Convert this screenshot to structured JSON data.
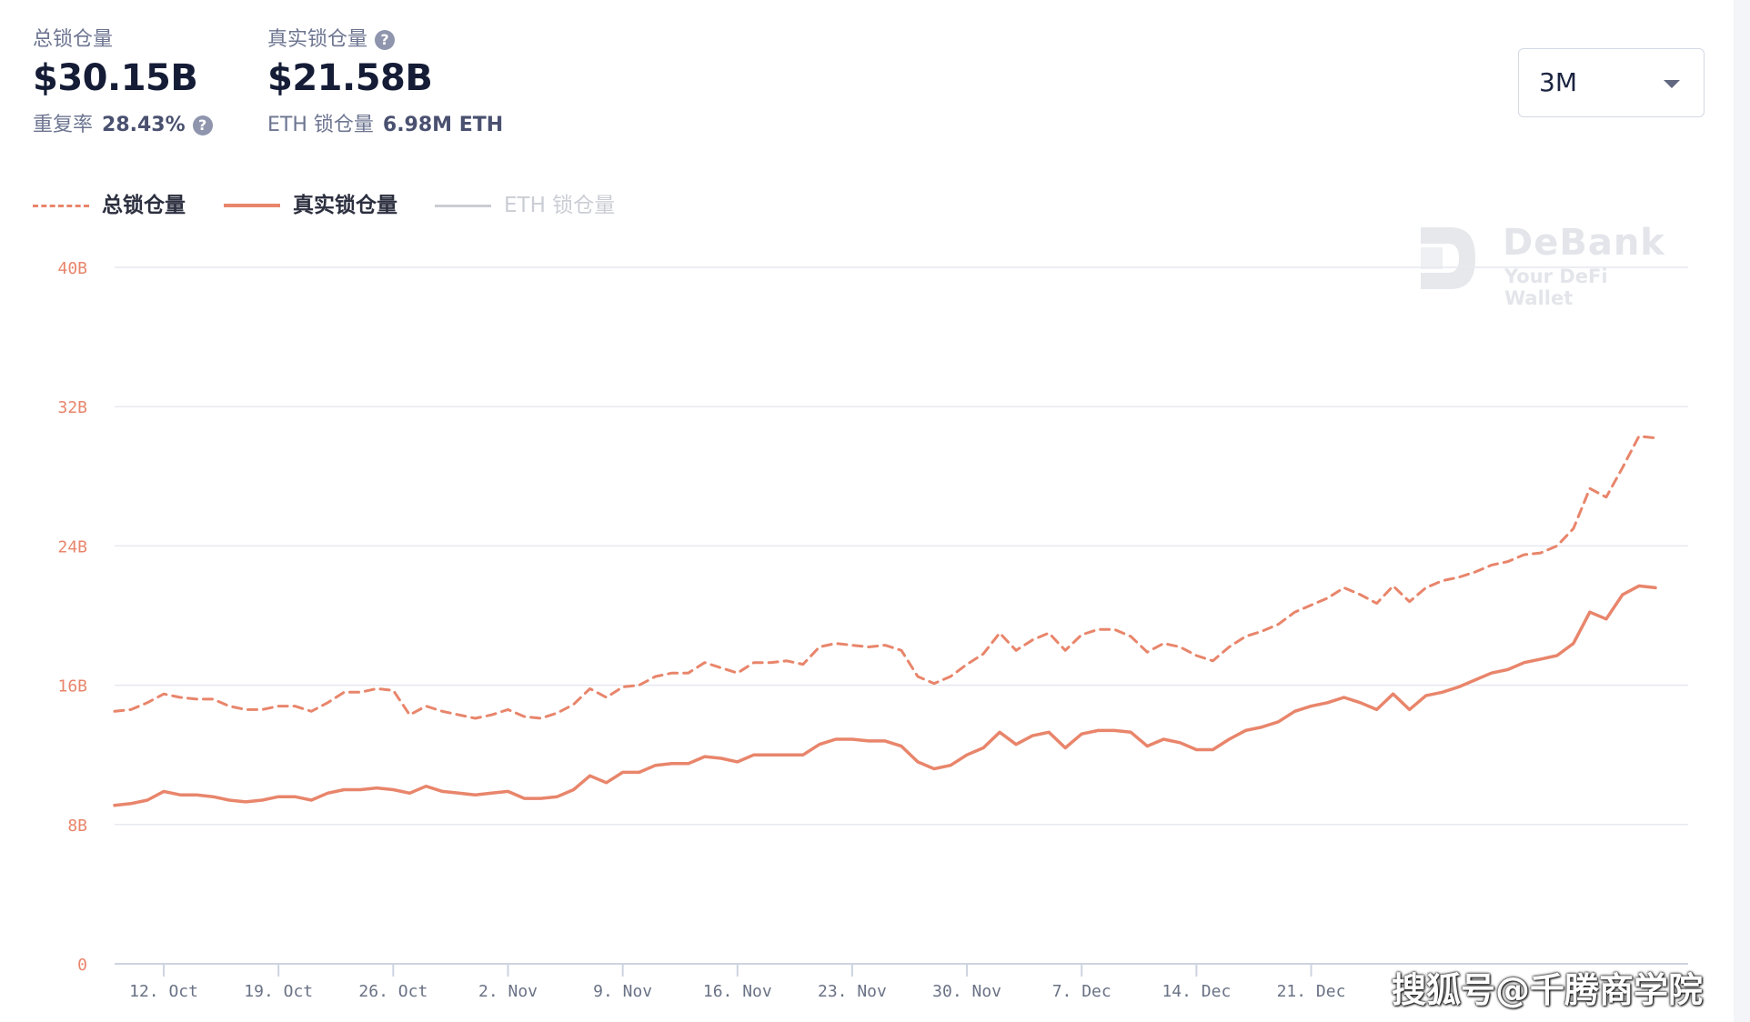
{
  "header": {
    "total_label": "总锁仓量",
    "total_value": "$30.15B",
    "real_label": "真实锁仓量",
    "real_value": "$21.58B",
    "help_glyph": "?",
    "dup_label": "重复率",
    "dup_value": "28.43%",
    "eth_label": "ETH 锁仓量",
    "eth_value": "6.98M ETH"
  },
  "range_select": {
    "value": "3M",
    "icon": "caret-down-icon"
  },
  "watermark": {
    "title": "DeBank",
    "subtitle": "Your DeFi Wallet"
  },
  "corner_note": "搜狐号@千腾商学院",
  "colors": {
    "accent": "#e8856b",
    "grid": "#e7e9ef",
    "axis": "#cdd3e0",
    "tick": "#e8856b",
    "xtick": "#6a7285",
    "disabled": "#cacdd4"
  },
  "chart_data": {
    "type": "line",
    "title": "",
    "xlabel": "",
    "ylabel": "",
    "ylim": [
      0,
      40
    ],
    "y_ticks": [
      0,
      8,
      16,
      24,
      32,
      40
    ],
    "y_tick_labels": [
      "0",
      "8B",
      "16B",
      "24B",
      "32B",
      "40B"
    ],
    "grid": true,
    "legend_position": "top-left",
    "x_ticks": [
      {
        "date": "2020-10-12",
        "label": "12. Oct"
      },
      {
        "date": "2020-10-19",
        "label": "19. Oct"
      },
      {
        "date": "2020-10-26",
        "label": "26. Oct"
      },
      {
        "date": "2020-11-02",
        "label": "2. Nov"
      },
      {
        "date": "2020-11-09",
        "label": "9. Nov"
      },
      {
        "date": "2020-11-16",
        "label": "16. Nov"
      },
      {
        "date": "2020-11-23",
        "label": "23. Nov"
      },
      {
        "date": "2020-11-30",
        "label": "30. Nov"
      },
      {
        "date": "2020-12-07",
        "label": "7. Dec"
      },
      {
        "date": "2020-12-14",
        "label": "14. Dec"
      },
      {
        "date": "2020-12-21",
        "label": "21. Dec"
      }
    ],
    "series": [
      {
        "name": "总锁仓量",
        "style": "dashed",
        "color": "#e8856b",
        "visible": true,
        "points": [
          [
            "2020-10-09",
            14.5
          ],
          [
            "2020-10-10",
            14.6
          ],
          [
            "2020-10-11",
            15.0
          ],
          [
            "2020-10-12",
            15.5
          ],
          [
            "2020-10-13",
            15.3
          ],
          [
            "2020-10-14",
            15.2
          ],
          [
            "2020-10-15",
            15.2
          ],
          [
            "2020-10-16",
            14.8
          ],
          [
            "2020-10-17",
            14.6
          ],
          [
            "2020-10-18",
            14.6
          ],
          [
            "2020-10-19",
            14.8
          ],
          [
            "2020-10-20",
            14.8
          ],
          [
            "2020-10-21",
            14.5
          ],
          [
            "2020-10-22",
            15.0
          ],
          [
            "2020-10-23",
            15.6
          ],
          [
            "2020-10-24",
            15.6
          ],
          [
            "2020-10-25",
            15.8
          ],
          [
            "2020-10-26",
            15.7
          ],
          [
            "2020-10-27",
            14.3
          ],
          [
            "2020-10-28",
            14.8
          ],
          [
            "2020-10-29",
            14.5
          ],
          [
            "2020-10-30",
            14.3
          ],
          [
            "2020-10-31",
            14.1
          ],
          [
            "2020-11-01",
            14.3
          ],
          [
            "2020-11-02",
            14.6
          ],
          [
            "2020-11-03",
            14.2
          ],
          [
            "2020-11-04",
            14.1
          ],
          [
            "2020-11-05",
            14.4
          ],
          [
            "2020-11-06",
            14.9
          ],
          [
            "2020-11-07",
            15.8
          ],
          [
            "2020-11-08",
            15.3
          ],
          [
            "2020-11-09",
            15.9
          ],
          [
            "2020-11-10",
            16.0
          ],
          [
            "2020-11-11",
            16.5
          ],
          [
            "2020-11-12",
            16.7
          ],
          [
            "2020-11-13",
            16.7
          ],
          [
            "2020-11-14",
            17.3
          ],
          [
            "2020-11-15",
            17.0
          ],
          [
            "2020-11-16",
            16.7
          ],
          [
            "2020-11-17",
            17.3
          ],
          [
            "2020-11-18",
            17.3
          ],
          [
            "2020-11-19",
            17.4
          ],
          [
            "2020-11-20",
            17.2
          ],
          [
            "2020-11-21",
            18.2
          ],
          [
            "2020-11-22",
            18.4
          ],
          [
            "2020-11-23",
            18.3
          ],
          [
            "2020-11-24",
            18.2
          ],
          [
            "2020-11-25",
            18.3
          ],
          [
            "2020-11-26",
            18.0
          ],
          [
            "2020-11-27",
            16.5
          ],
          [
            "2020-11-28",
            16.1
          ],
          [
            "2020-11-29",
            16.5
          ],
          [
            "2020-11-30",
            17.2
          ],
          [
            "2020-12-01",
            17.8
          ],
          [
            "2020-12-02",
            19.0
          ],
          [
            "2020-12-03",
            18.0
          ],
          [
            "2020-12-04",
            18.6
          ],
          [
            "2020-12-05",
            19.0
          ],
          [
            "2020-12-06",
            18.0
          ],
          [
            "2020-12-07",
            18.9
          ],
          [
            "2020-12-08",
            19.2
          ],
          [
            "2020-12-09",
            19.2
          ],
          [
            "2020-12-10",
            18.8
          ],
          [
            "2020-12-11",
            17.9
          ],
          [
            "2020-12-12",
            18.4
          ],
          [
            "2020-12-13",
            18.2
          ],
          [
            "2020-12-14",
            17.7
          ],
          [
            "2020-12-15",
            17.4
          ],
          [
            "2020-12-16",
            18.2
          ],
          [
            "2020-12-17",
            18.8
          ],
          [
            "2020-12-18",
            19.1
          ],
          [
            "2020-12-19",
            19.5
          ],
          [
            "2020-12-20",
            20.2
          ],
          [
            "2020-12-21",
            20.6
          ],
          [
            "2020-12-22",
            21.0
          ],
          [
            "2020-12-23",
            21.6
          ],
          [
            "2020-12-24",
            21.2
          ],
          [
            "2020-12-25",
            20.7
          ],
          [
            "2020-12-26",
            21.7
          ],
          [
            "2020-12-27",
            20.8
          ],
          [
            "2020-12-28",
            21.6
          ],
          [
            "2020-12-29",
            22.0
          ],
          [
            "2020-12-30",
            22.2
          ],
          [
            "2020-12-31",
            22.5
          ],
          [
            "2021-01-01",
            22.9
          ],
          [
            "2021-01-02",
            23.1
          ],
          [
            "2021-01-03",
            23.5
          ],
          [
            "2021-01-04",
            23.6
          ],
          [
            "2021-01-05",
            24.0
          ],
          [
            "2021-01-06",
            25.0
          ],
          [
            "2021-01-07",
            27.3
          ],
          [
            "2021-01-08",
            26.8
          ],
          [
            "2021-01-09",
            28.5
          ],
          [
            "2021-01-10",
            30.3
          ],
          [
            "2021-01-11",
            30.2
          ]
        ]
      },
      {
        "name": "真实锁仓量",
        "style": "solid",
        "color": "#e8856b",
        "visible": true,
        "points": [
          [
            "2020-10-09",
            9.1
          ],
          [
            "2020-10-10",
            9.2
          ],
          [
            "2020-10-11",
            9.4
          ],
          [
            "2020-10-12",
            9.9
          ],
          [
            "2020-10-13",
            9.7
          ],
          [
            "2020-10-14",
            9.7
          ],
          [
            "2020-10-15",
            9.6
          ],
          [
            "2020-10-16",
            9.4
          ],
          [
            "2020-10-17",
            9.3
          ],
          [
            "2020-10-18",
            9.4
          ],
          [
            "2020-10-19",
            9.6
          ],
          [
            "2020-10-20",
            9.6
          ],
          [
            "2020-10-21",
            9.4
          ],
          [
            "2020-10-22",
            9.8
          ],
          [
            "2020-10-23",
            10.0
          ],
          [
            "2020-10-24",
            10.0
          ],
          [
            "2020-10-25",
            10.1
          ],
          [
            "2020-10-26",
            10.0
          ],
          [
            "2020-10-27",
            9.8
          ],
          [
            "2020-10-28",
            10.2
          ],
          [
            "2020-10-29",
            9.9
          ],
          [
            "2020-10-30",
            9.8
          ],
          [
            "2020-10-31",
            9.7
          ],
          [
            "2020-11-01",
            9.8
          ],
          [
            "2020-11-02",
            9.9
          ],
          [
            "2020-11-03",
            9.5
          ],
          [
            "2020-11-04",
            9.5
          ],
          [
            "2020-11-05",
            9.6
          ],
          [
            "2020-11-06",
            10.0
          ],
          [
            "2020-11-07",
            10.8
          ],
          [
            "2020-11-08",
            10.4
          ],
          [
            "2020-11-09",
            11.0
          ],
          [
            "2020-11-10",
            11.0
          ],
          [
            "2020-11-11",
            11.4
          ],
          [
            "2020-11-12",
            11.5
          ],
          [
            "2020-11-13",
            11.5
          ],
          [
            "2020-11-14",
            11.9
          ],
          [
            "2020-11-15",
            11.8
          ],
          [
            "2020-11-16",
            11.6
          ],
          [
            "2020-11-17",
            12.0
          ],
          [
            "2020-11-18",
            12.0
          ],
          [
            "2020-11-19",
            12.0
          ],
          [
            "2020-11-20",
            12.0
          ],
          [
            "2020-11-21",
            12.6
          ],
          [
            "2020-11-22",
            12.9
          ],
          [
            "2020-11-23",
            12.9
          ],
          [
            "2020-11-24",
            12.8
          ],
          [
            "2020-11-25",
            12.8
          ],
          [
            "2020-11-26",
            12.5
          ],
          [
            "2020-11-27",
            11.6
          ],
          [
            "2020-11-28",
            11.2
          ],
          [
            "2020-11-29",
            11.4
          ],
          [
            "2020-11-30",
            12.0
          ],
          [
            "2020-12-01",
            12.4
          ],
          [
            "2020-12-02",
            13.3
          ],
          [
            "2020-12-03",
            12.6
          ],
          [
            "2020-12-04",
            13.1
          ],
          [
            "2020-12-05",
            13.3
          ],
          [
            "2020-12-06",
            12.4
          ],
          [
            "2020-12-07",
            13.2
          ],
          [
            "2020-12-08",
            13.4
          ],
          [
            "2020-12-09",
            13.4
          ],
          [
            "2020-12-10",
            13.3
          ],
          [
            "2020-12-11",
            12.5
          ],
          [
            "2020-12-12",
            12.9
          ],
          [
            "2020-12-13",
            12.7
          ],
          [
            "2020-12-14",
            12.3
          ],
          [
            "2020-12-15",
            12.3
          ],
          [
            "2020-12-16",
            12.9
          ],
          [
            "2020-12-17",
            13.4
          ],
          [
            "2020-12-18",
            13.6
          ],
          [
            "2020-12-19",
            13.9
          ],
          [
            "2020-12-20",
            14.5
          ],
          [
            "2020-12-21",
            14.8
          ],
          [
            "2020-12-22",
            15.0
          ],
          [
            "2020-12-23",
            15.3
          ],
          [
            "2020-12-24",
            15.0
          ],
          [
            "2020-12-25",
            14.6
          ],
          [
            "2020-12-26",
            15.5
          ],
          [
            "2020-12-27",
            14.6
          ],
          [
            "2020-12-28",
            15.4
          ],
          [
            "2020-12-29",
            15.6
          ],
          [
            "2020-12-30",
            15.9
          ],
          [
            "2020-12-31",
            16.3
          ],
          [
            "2021-01-01",
            16.7
          ],
          [
            "2021-01-02",
            16.9
          ],
          [
            "2021-01-03",
            17.3
          ],
          [
            "2021-01-04",
            17.5
          ],
          [
            "2021-01-05",
            17.7
          ],
          [
            "2021-01-06",
            18.4
          ],
          [
            "2021-01-07",
            20.2
          ],
          [
            "2021-01-08",
            19.8
          ],
          [
            "2021-01-09",
            21.2
          ],
          [
            "2021-01-10",
            21.7
          ],
          [
            "2021-01-11",
            21.6
          ]
        ]
      },
      {
        "name": "ETH 锁仓量",
        "style": "solid",
        "color": "#cacdd4",
        "visible": false,
        "points": []
      }
    ]
  }
}
